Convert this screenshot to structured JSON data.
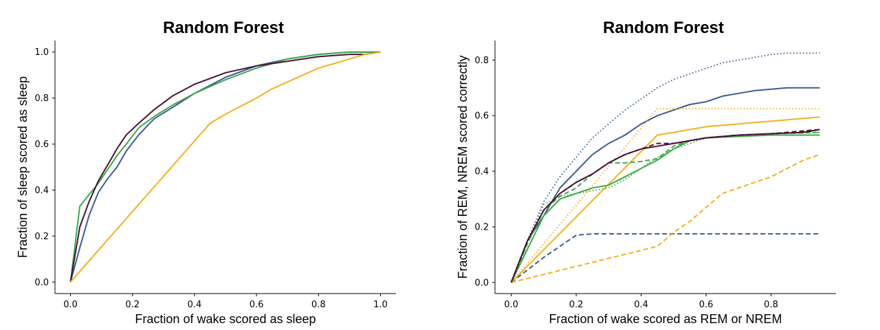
{
  "chart_data": [
    {
      "type": "line",
      "title": "Random Forest",
      "xlabel": "Fraction of wake scored as sleep",
      "ylabel": "Fraction of sleep scored as sleep",
      "xlim": [
        -0.05,
        1.05
      ],
      "ylim": [
        -0.05,
        1.05
      ],
      "xticks": [
        0.0,
        0.2,
        0.4,
        0.6,
        0.8,
        1.0
      ],
      "yticks": [
        0.0,
        0.2,
        0.4,
        0.6,
        0.8,
        1.0
      ],
      "xtick_labels": [
        "0.0",
        "0.2",
        "0.4",
        "0.6",
        "0.8",
        "1.0"
      ],
      "ytick_labels": [
        "0.0",
        "0.2",
        "0.4",
        "0.6",
        "0.8",
        "1.0"
      ],
      "series": [
        {
          "name": "blue",
          "color": "#3b5b92",
          "dash": "solid",
          "x": [
            0,
            0.03,
            0.06,
            0.09,
            0.12,
            0.15,
            0.18,
            0.22,
            0.27,
            0.33,
            0.4,
            0.5,
            0.6,
            0.7,
            0.8,
            0.9,
            1.0
          ],
          "y": [
            0,
            0.15,
            0.29,
            0.39,
            0.45,
            0.5,
            0.57,
            0.64,
            0.71,
            0.76,
            0.82,
            0.89,
            0.94,
            0.97,
            0.99,
            1.0,
            1.0
          ]
        },
        {
          "name": "green",
          "color": "#3aaa45",
          "dash": "solid",
          "x": [
            0,
            0.03,
            0.06,
            0.09,
            0.12,
            0.15,
            0.18,
            0.22,
            0.27,
            0.33,
            0.4,
            0.5,
            0.6,
            0.7,
            0.8,
            0.9,
            1.0
          ],
          "y": [
            0,
            0.33,
            0.38,
            0.43,
            0.49,
            0.55,
            0.6,
            0.67,
            0.72,
            0.77,
            0.82,
            0.88,
            0.93,
            0.97,
            0.99,
            1.0,
            1.0
          ]
        },
        {
          "name": "purple",
          "color": "#4a1038",
          "dash": "solid",
          "x": [
            0,
            0.03,
            0.06,
            0.09,
            0.12,
            0.15,
            0.18,
            0.22,
            0.27,
            0.33,
            0.4,
            0.5,
            0.6,
            0.7,
            0.8,
            0.9,
            0.95,
            1.0
          ],
          "y": [
            0,
            0.24,
            0.35,
            0.44,
            0.51,
            0.58,
            0.64,
            0.69,
            0.75,
            0.81,
            0.86,
            0.91,
            0.94,
            0.96,
            0.98,
            0.99,
            0.99,
            1.0
          ]
        },
        {
          "name": "orange",
          "color": "#f2b01e",
          "dash": "solid",
          "x": [
            0,
            0.45,
            0.5,
            0.6,
            0.65,
            0.7,
            0.75,
            0.8,
            0.85,
            0.9,
            0.95,
            1.0
          ],
          "y": [
            0,
            0.69,
            0.73,
            0.8,
            0.84,
            0.87,
            0.9,
            0.93,
            0.95,
            0.97,
            0.99,
            1.0
          ]
        }
      ]
    },
    {
      "type": "line",
      "title": "Random Forest",
      "xlabel": "Fraction of wake scored as REM or NREM",
      "ylabel": "Fraction of REM, NREM scored correctly",
      "xlim": [
        -0.05,
        1.0
      ],
      "ylim": [
        -0.04,
        0.87
      ],
      "xticks": [
        0.0,
        0.2,
        0.4,
        0.6,
        0.8
      ],
      "yticks": [
        0.0,
        0.2,
        0.4,
        0.6,
        0.8
      ],
      "xtick_labels": [
        "0.0",
        "0.2",
        "0.4",
        "0.6",
        "0.8"
      ],
      "ytick_labels": [
        "0.0",
        "0.2",
        "0.4",
        "0.6",
        "0.8"
      ],
      "series": [
        {
          "name": "blue-solid",
          "color": "#3b5b92",
          "dash": "solid",
          "x": [
            0,
            0.05,
            0.1,
            0.15,
            0.2,
            0.25,
            0.3,
            0.35,
            0.4,
            0.45,
            0.5,
            0.55,
            0.6,
            0.65,
            0.7,
            0.75,
            0.8,
            0.85,
            0.9,
            0.95
          ],
          "y": [
            0,
            0.15,
            0.24,
            0.34,
            0.4,
            0.46,
            0.5,
            0.53,
            0.57,
            0.6,
            0.62,
            0.64,
            0.65,
            0.67,
            0.68,
            0.69,
            0.695,
            0.7,
            0.7,
            0.7
          ]
        },
        {
          "name": "blue-dotted",
          "color": "#3b5b92",
          "dash": "dotted",
          "x": [
            0,
            0.05,
            0.1,
            0.15,
            0.2,
            0.25,
            0.3,
            0.35,
            0.4,
            0.45,
            0.5,
            0.55,
            0.6,
            0.65,
            0.7,
            0.75,
            0.8,
            0.85,
            0.9,
            0.95
          ],
          "y": [
            0,
            0.15,
            0.29,
            0.38,
            0.45,
            0.52,
            0.57,
            0.62,
            0.66,
            0.7,
            0.73,
            0.75,
            0.77,
            0.79,
            0.8,
            0.81,
            0.82,
            0.825,
            0.825,
            0.825
          ]
        },
        {
          "name": "blue-dashed",
          "color": "#3b5b92",
          "dash": "dashed",
          "x": [
            0,
            0.1,
            0.2,
            0.25,
            0.3,
            0.4,
            0.5,
            0.6,
            0.7,
            0.8,
            0.95
          ],
          "y": [
            0,
            0.09,
            0.17,
            0.175,
            0.175,
            0.175,
            0.175,
            0.175,
            0.175,
            0.175,
            0.175
          ]
        },
        {
          "name": "orange-solid",
          "color": "#f2b01e",
          "dash": "solid",
          "x": [
            0,
            0.45,
            0.5,
            0.55,
            0.6,
            0.65,
            0.7,
            0.75,
            0.8,
            0.85,
            0.9,
            0.95
          ],
          "y": [
            0,
            0.53,
            0.54,
            0.55,
            0.56,
            0.565,
            0.57,
            0.575,
            0.58,
            0.585,
            0.59,
            0.595
          ]
        },
        {
          "name": "orange-dotted",
          "color": "#f2b01e",
          "dash": "dotted",
          "x": [
            0,
            0.45,
            0.5,
            0.6,
            0.7,
            0.8,
            0.9,
            0.95
          ],
          "y": [
            0,
            0.625,
            0.625,
            0.625,
            0.625,
            0.625,
            0.625,
            0.625
          ]
        },
        {
          "name": "orange-dashed",
          "color": "#f2b01e",
          "dash": "dashed",
          "x": [
            0,
            0.45,
            0.5,
            0.55,
            0.6,
            0.65,
            0.7,
            0.75,
            0.8,
            0.85,
            0.9,
            0.95
          ],
          "y": [
            0,
            0.13,
            0.18,
            0.22,
            0.27,
            0.32,
            0.34,
            0.36,
            0.38,
            0.41,
            0.44,
            0.46
          ]
        },
        {
          "name": "green-solid",
          "color": "#3aaa45",
          "dash": "solid",
          "x": [
            0,
            0.05,
            0.1,
            0.15,
            0.2,
            0.25,
            0.3,
            0.35,
            0.4,
            0.45,
            0.5,
            0.55,
            0.6,
            0.7,
            0.8,
            0.95
          ],
          "y": [
            0,
            0.12,
            0.24,
            0.3,
            0.32,
            0.34,
            0.35,
            0.38,
            0.41,
            0.44,
            0.48,
            0.51,
            0.52,
            0.525,
            0.53,
            0.53
          ]
        },
        {
          "name": "green-dashed",
          "color": "#3aaa45",
          "dash": "dashed",
          "x": [
            0,
            0.05,
            0.1,
            0.15,
            0.2,
            0.25,
            0.3,
            0.35,
            0.4,
            0.45,
            0.5,
            0.55,
            0.6,
            0.7,
            0.8,
            0.95
          ],
          "y": [
            0,
            0.14,
            0.26,
            0.31,
            0.34,
            0.39,
            0.43,
            0.43,
            0.435,
            0.445,
            0.49,
            0.51,
            0.52,
            0.53,
            0.535,
            0.54
          ]
        },
        {
          "name": "green-dotted",
          "color": "#3aaa45",
          "dash": "dotted",
          "x": [
            0,
            0.05,
            0.1,
            0.15,
            0.2,
            0.25,
            0.3,
            0.35,
            0.4,
            0.45,
            0.5,
            0.55,
            0.6,
            0.7,
            0.8,
            0.95
          ],
          "y": [
            0,
            0.14,
            0.28,
            0.31,
            0.32,
            0.33,
            0.34,
            0.37,
            0.41,
            0.45,
            0.48,
            0.5,
            0.52,
            0.53,
            0.535,
            0.54
          ]
        },
        {
          "name": "purple-solid",
          "color": "#4a1038",
          "dash": "solid",
          "x": [
            0,
            0.05,
            0.1,
            0.15,
            0.2,
            0.25,
            0.3,
            0.35,
            0.4,
            0.45,
            0.5,
            0.55,
            0.6,
            0.7,
            0.8,
            0.9,
            0.95
          ],
          "y": [
            0,
            0.15,
            0.26,
            0.32,
            0.36,
            0.39,
            0.43,
            0.46,
            0.48,
            0.49,
            0.5,
            0.51,
            0.52,
            0.53,
            0.535,
            0.54,
            0.55
          ]
        },
        {
          "name": "purple-dashed",
          "color": "#4a1038",
          "dash": "dashed",
          "x": [
            0,
            0.05,
            0.1,
            0.15,
            0.2,
            0.25,
            0.3,
            0.35,
            0.4,
            0.45,
            0.5,
            0.55,
            0.6,
            0.7,
            0.8,
            0.9,
            0.95
          ],
          "y": [
            0,
            0.15,
            0.26,
            0.32,
            0.36,
            0.39,
            0.43,
            0.46,
            0.48,
            0.5,
            0.5,
            0.51,
            0.52,
            0.53,
            0.535,
            0.545,
            0.55
          ]
        }
      ]
    }
  ]
}
